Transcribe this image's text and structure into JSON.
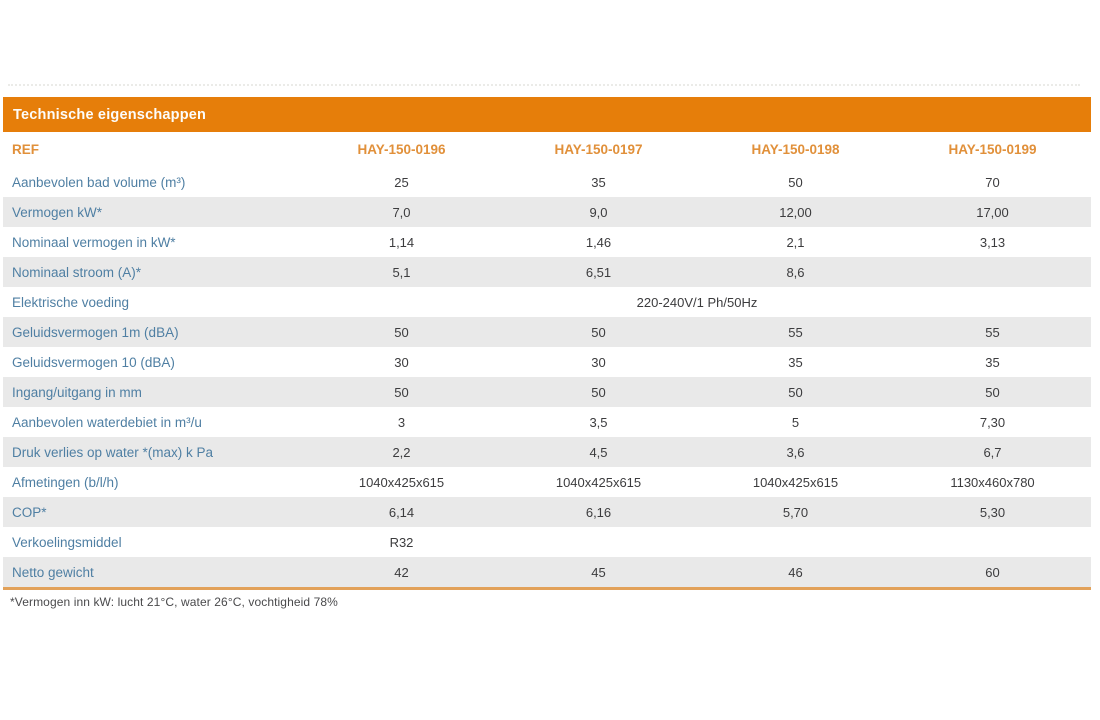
{
  "colors": {
    "header_bar": "#E67E0A",
    "header_text": "#E1903A",
    "bottom_line": "#E2A159",
    "row_label": "#4F7FA3",
    "value_text": "#3C3C3E",
    "stripe": "#E9E9E9"
  },
  "table": {
    "title": "Technische eigenschappen",
    "ref_label": "REF",
    "columns": [
      "HAY-150-0196",
      "HAY-150-0197",
      "HAY-150-0198",
      "HAY-150-0199"
    ],
    "rows": [
      {
        "label": "Aanbevolen bad volume (m³)",
        "values": [
          "25",
          "35",
          "50",
          "70"
        ]
      },
      {
        "label": "Vermogen kW*",
        "values": [
          "7,0",
          "9,0",
          "12,00",
          "17,00"
        ]
      },
      {
        "label": "Nominaal vermogen in kW*",
        "values": [
          "1,14",
          "1,46",
          "2,1",
          "3,13"
        ]
      },
      {
        "label": "Nominaal stroom (A)*",
        "values": [
          "5,1",
          "6,51",
          "8,6",
          ""
        ]
      },
      {
        "label": "Elektrische voeding",
        "span_value": "220-240V/1 Ph/50Hz"
      },
      {
        "label": "Geluidsvermogen 1m (dBA)",
        "values": [
          "50",
          "50",
          "55",
          "55"
        ]
      },
      {
        "label": "Geluidsvermogen 10 (dBA)",
        "values": [
          "30",
          "30",
          "35",
          "35"
        ]
      },
      {
        "label": "Ingang/uitgang in mm",
        "values": [
          "50",
          "50",
          "50",
          "50"
        ]
      },
      {
        "label": "Aanbevolen waterdebiet in m³/u",
        "values": [
          "3",
          "3,5",
          "5",
          "7,30"
        ]
      },
      {
        "label": "Druk verlies op water *(max) k Pa",
        "values": [
          "2,2",
          "4,5",
          "3,6",
          "6,7"
        ]
      },
      {
        "label": "Afmetingen (b/l/h)",
        "values": [
          "1040x425x615",
          "1040x425x615",
          "1040x425x615",
          "1130x460x780"
        ]
      },
      {
        "label": "COP*",
        "values": [
          "6,14",
          "6,16",
          "5,70",
          "5,30"
        ]
      },
      {
        "label": "Verkoelingsmiddel",
        "values": [
          "R32",
          "",
          "",
          ""
        ]
      },
      {
        "label": "Netto gewicht",
        "values": [
          "42",
          "45",
          "46",
          "60"
        ]
      }
    ],
    "footnote": "*Vermogen inn kW: lucht 21°C, water 26°C, vochtigheid 78%"
  }
}
